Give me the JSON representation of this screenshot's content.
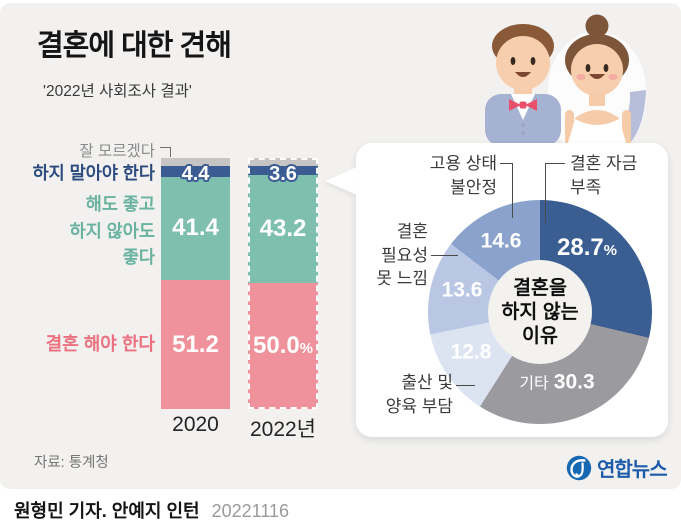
{
  "header": {
    "title": "결혼에 대한 견해",
    "subtitle": "'2022년 사회조사 결과'"
  },
  "footer": {
    "source": "자료: 통계청",
    "credit": "원형민 기자. 안예지 인턴",
    "date": "20221116",
    "agency": "연합뉴스"
  },
  "colors": {
    "background": "#f2f1ef",
    "card": "#ffffff",
    "bar_unknown": "#c6c5c3",
    "bar_should_not": "#3a5c92",
    "bar_either": "#7fbfae",
    "bar_should": "#f0929c",
    "pie_funds": "#3a5e92",
    "pie_etc": "#9b9b9f",
    "pie_birth": "#dce4f2",
    "pie_need": "#b9c7e4",
    "pie_employ": "#8ba3cc",
    "agency_blue": "#1d5cab"
  },
  "chart_data": [
    {
      "type": "bar",
      "stacked": true,
      "title": "결혼에 대한 견해",
      "categories": [
        "2020",
        "2022년"
      ],
      "highlighted_category": "2022년",
      "ylim": [
        0,
        100
      ],
      "series": [
        {
          "name": "잘 모르겠다",
          "display_name": "잘 모르겠다",
          "color": "#c6c5c3",
          "values": [
            3.0,
            3.2
          ],
          "value_labels": [
            "",
            ""
          ]
        },
        {
          "name": "하지 말아야 한다",
          "display_name": "하지 말아야 한다",
          "color": "#3a5c92",
          "values": [
            4.4,
            3.6
          ],
          "value_labels": [
            "4.4",
            "3.6"
          ]
        },
        {
          "name": "해도 좋고 하지 않아도 좋다",
          "display_name": "해도 좋고\n하지 않아도\n좋다",
          "color": "#7fbfae",
          "values": [
            41.4,
            43.2
          ],
          "value_labels": [
            "41.4",
            "43.2"
          ]
        },
        {
          "name": "결혼 해야 한다",
          "display_name": "결혼 해야 한다",
          "color": "#f0929c",
          "values": [
            51.2,
            50.0
          ],
          "value_labels": [
            "51.2",
            "50.0%"
          ]
        }
      ]
    },
    {
      "type": "pie",
      "donut": true,
      "title": "결혼을 하지 않는 이유",
      "center_label": "결혼을\n하지 않는\n이유",
      "start_angle_deg": 0,
      "direction": "clockwise",
      "slices": [
        {
          "label": "결혼 자금 부족",
          "callout": "결혼 자금\n부족",
          "value": 28.7,
          "value_label": "28.7%",
          "color": "#3a5e92"
        },
        {
          "label": "기타",
          "callout": "",
          "value": 30.3,
          "value_label": "30.3",
          "color": "#9b9b9f"
        },
        {
          "label": "출산 및 양육 부담",
          "callout": "출산 및\n양육 부담",
          "value": 12.8,
          "value_label": "12.8",
          "color": "#dce4f2"
        },
        {
          "label": "결혼 필요성 못 느낌",
          "callout": "결혼\n필요성\n못 느낌",
          "value": 13.6,
          "value_label": "13.6",
          "color": "#b9c7e4"
        },
        {
          "label": "고용 상태 불안정",
          "callout": "고용 상태\n불안정",
          "value": 14.6,
          "value_label": "14.6",
          "color": "#8ba3cc"
        }
      ]
    }
  ]
}
